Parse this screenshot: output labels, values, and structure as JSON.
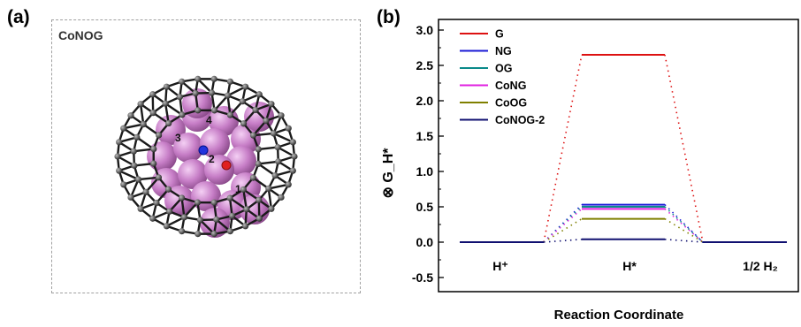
{
  "panel_a": {
    "label": "(a)",
    "caption": "CoNOG",
    "site_labels": [
      "1",
      "2",
      "3",
      "4"
    ]
  },
  "panel_b": {
    "label": "(b)"
  },
  "chart_data": {
    "type": "line",
    "title": "",
    "xlabel": "Reaction Coordinate",
    "ylabel": "⊗ G_H*",
    "ylim": [
      -0.7,
      3.15
    ],
    "yticks": [
      -0.5,
      0.0,
      0.5,
      1.0,
      1.5,
      2.0,
      2.5,
      3.0
    ],
    "ytick_labels": [
      "-0.5",
      "0.0",
      "0.5",
      "1.0",
      "1.5",
      "2.0",
      "2.5",
      "3.0"
    ],
    "stages": [
      "H⁺",
      "H*",
      "1/2 H₂"
    ],
    "legend_position": "top-left",
    "grid": false,
    "series": [
      {
        "name": "G",
        "values": [
          0,
          2.65,
          0
        ],
        "color": "#dd1111"
      },
      {
        "name": "NG",
        "values": [
          0,
          0.53,
          0
        ],
        "color": "#1a1ad6"
      },
      {
        "name": "OG",
        "values": [
          0,
          0.5,
          0
        ],
        "color": "#0a8a8a"
      },
      {
        "name": "CoNG",
        "values": [
          0,
          0.47,
          0
        ],
        "color": "#e020e0"
      },
      {
        "name": "CoOG",
        "values": [
          0,
          0.33,
          0
        ],
        "color": "#808000"
      },
      {
        "name": "CoNOG-2",
        "values": [
          0,
          0.04,
          0
        ],
        "color": "#101070"
      }
    ]
  }
}
